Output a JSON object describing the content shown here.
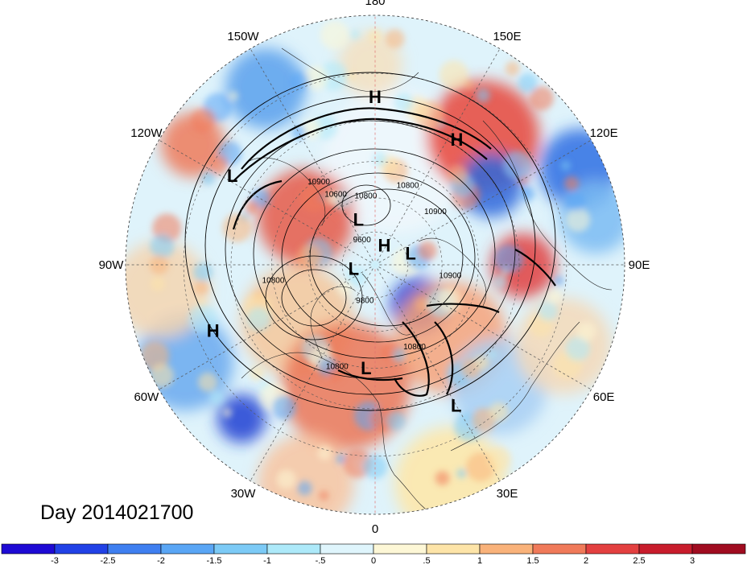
{
  "title": "Day 2014021700",
  "longitude_labels": [
    {
      "text": "90E",
      "lon": 90
    },
    {
      "text": "60E",
      "lon": 60
    },
    {
      "text": "30E",
      "lon": 30
    },
    {
      "text": "0",
      "lon": 0
    },
    {
      "text": "30W",
      "lon": -30
    },
    {
      "text": "60W",
      "lon": -60
    },
    {
      "text": "90W",
      "lon": -90
    },
    {
      "text": "120W",
      "lon": -120
    },
    {
      "text": "150W",
      "lon": -150
    },
    {
      "text": "180",
      "lon": 180
    },
    {
      "text": "150E",
      "lon": 150
    },
    {
      "text": "120E",
      "lon": 120
    }
  ],
  "pressure_centers": [
    {
      "label": "H",
      "lon": 147,
      "lat": 28
    },
    {
      "label": "H",
      "lon": 180,
      "lat": 22
    },
    {
      "label": "L",
      "lon": 30,
      "lat": 24
    },
    {
      "label": "L",
      "lon": -5,
      "lat": 45
    },
    {
      "label": "L",
      "lon": 108,
      "lat": 73
    },
    {
      "label": "H",
      "lon": 155,
      "lat": 80
    },
    {
      "label": "L",
      "lon": -160,
      "lat": 68
    },
    {
      "label": "L",
      "lon": -80,
      "lat": 80
    },
    {
      "label": "L",
      "lon": -122,
      "lat": 22
    },
    {
      "label": "H",
      "lon": -68,
      "lat": 20
    }
  ],
  "contour_labels": [
    {
      "text": "10900",
      "lon": 80,
      "lat": 56
    },
    {
      "text": "10900",
      "lon": 130,
      "lat": 55
    },
    {
      "text": "10800",
      "lon": 25,
      "lat": 49
    },
    {
      "text": "10800",
      "lon": 157,
      "lat": 53
    },
    {
      "text": "10800",
      "lon": -172,
      "lat": 60
    },
    {
      "text": "10800",
      "lon": -20,
      "lat": 42
    },
    {
      "text": "10800",
      "lon": -80,
      "lat": 45
    },
    {
      "text": "10600",
      "lon": -150,
      "lat": 55
    },
    {
      "text": "9800",
      "lon": -15,
      "lat": 72
    },
    {
      "text": "9600",
      "lon": -150,
      "lat": 78
    },
    {
      "text": "10900",
      "lon": -145,
      "lat": 47
    }
  ],
  "colorbar": {
    "ticks": [
      "-3",
      "-2.5",
      "-2",
      "-1.5",
      "-1",
      "-.5",
      "0",
      ".5",
      "1",
      "1.5",
      "2",
      "2.5",
      "3"
    ],
    "colors": [
      "#1e0ad4",
      "#2141e6",
      "#3f7ff0",
      "#5aa6f5",
      "#7ccaf6",
      "#ade9f9",
      "#dff5fc",
      "#fdf7d6",
      "#fde4a8",
      "#f9b27a",
      "#f07a5a",
      "#e34040",
      "#c81c2c",
      "#a00c20"
    ]
  },
  "colors": {
    "grid": "#555555",
    "meridian_0_180": "#e07070",
    "contour": "#000000"
  }
}
